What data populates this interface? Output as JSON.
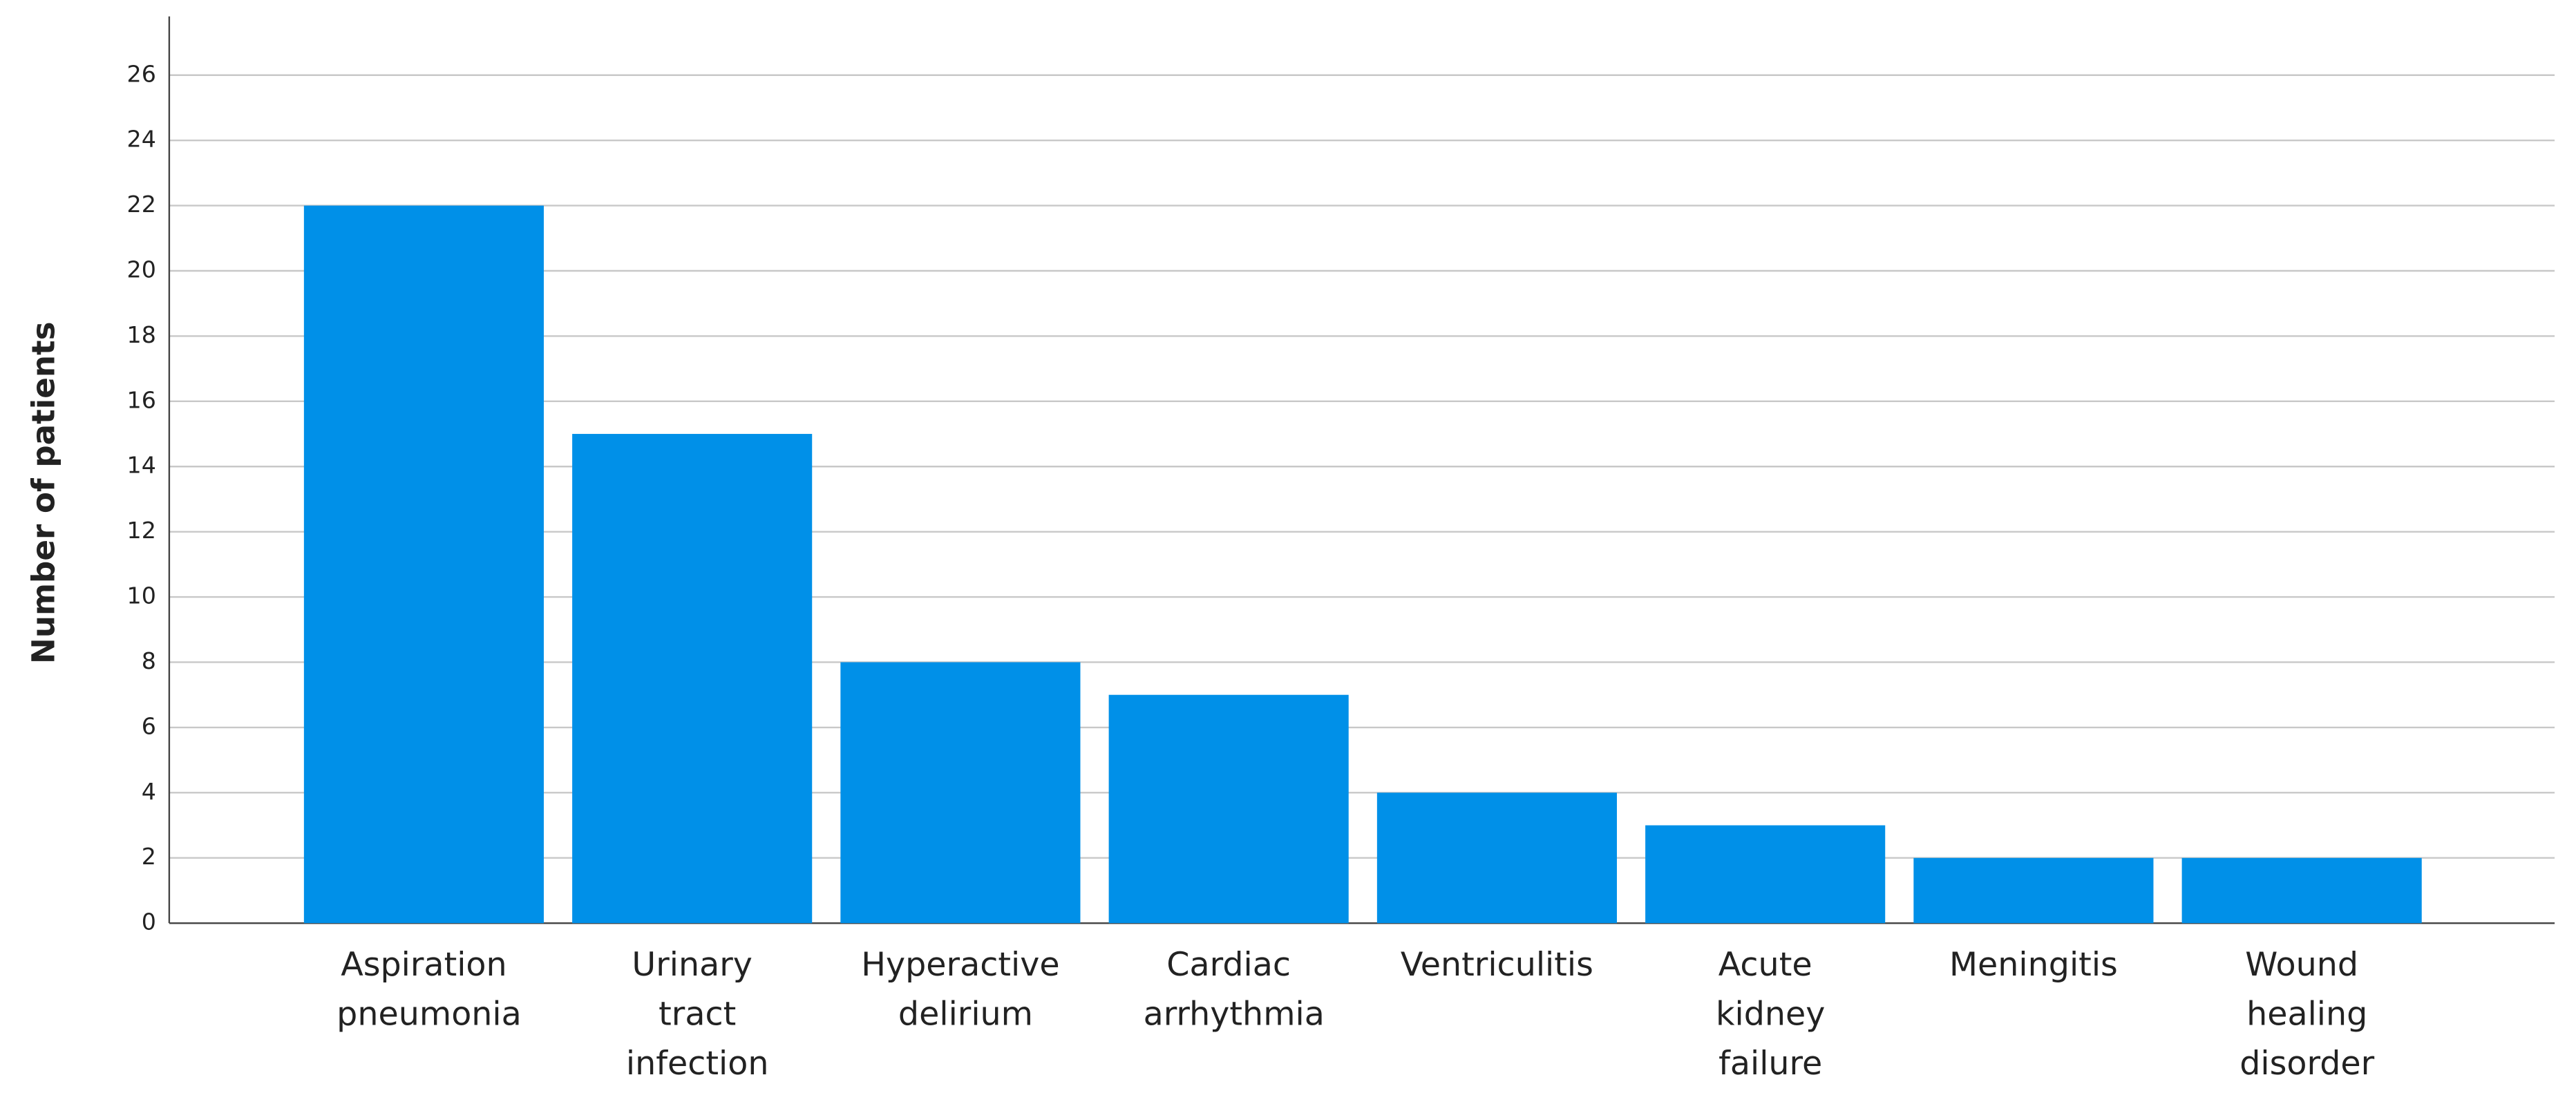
{
  "chart_data": {
    "type": "bar",
    "y_label": "Number of patients",
    "categories": [
      "Aspiration pneumonia",
      "Urinary tract infection",
      "Hyperactive delirium",
      "Cardiac arrhythmia",
      "Ventriculitis",
      "Acute kidney failure",
      "Meningitis",
      "Wound healing disorder"
    ],
    "values": [
      22,
      15,
      8,
      7,
      4,
      3,
      2,
      2
    ],
    "color": "#0090e8",
    "ylim": [
      0,
      27.8
    ],
    "yticks": [
      0,
      2,
      4,
      6,
      8,
      10,
      12,
      14,
      16,
      18,
      20,
      22,
      24,
      26
    ],
    "grid": true
  }
}
